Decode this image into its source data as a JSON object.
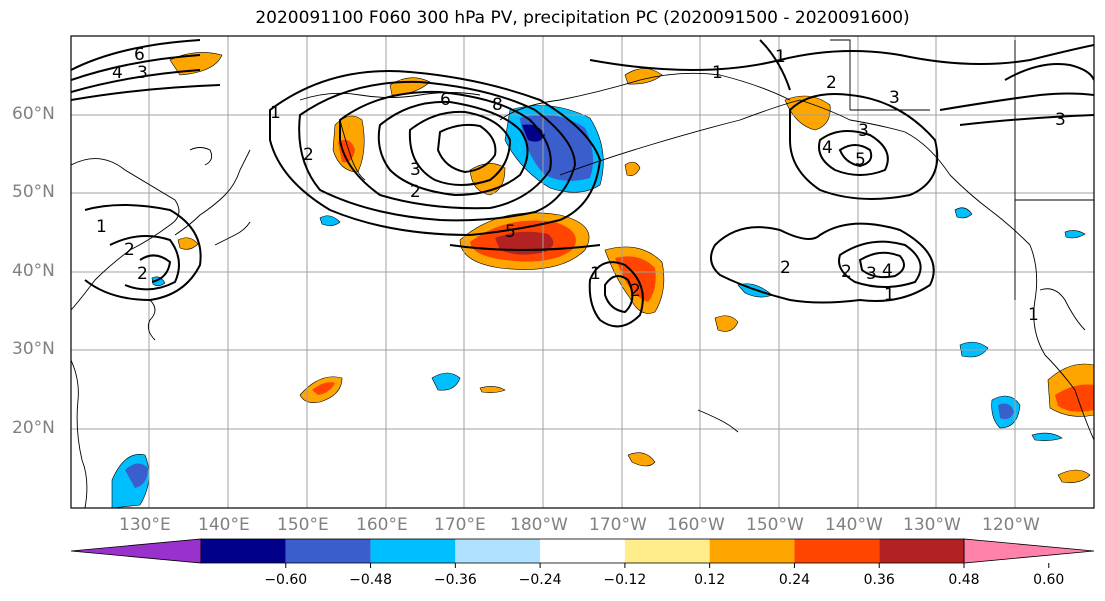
{
  "title": "2020091100 F060 300 hPa PV, precipitation PC (2020091500 - 2020091600)",
  "map": {
    "latitude_labels": [
      "60°N",
      "50°N",
      "40°N",
      "30°N",
      "20°N"
    ],
    "longitude_labels": [
      "130°E",
      "140°E",
      "150°E",
      "160°E",
      "170°E",
      "180°W",
      "170°W",
      "160°W",
      "150°W",
      "140°W",
      "130°W",
      "120°W"
    ],
    "contour_labels": [
      "1",
      "2",
      "3",
      "4",
      "5",
      "6",
      "8"
    ],
    "grid": true
  },
  "colorbar": {
    "ticks": [
      "−0.60",
      "−0.48",
      "−0.36",
      "−0.24",
      "−0.12",
      "0.12",
      "0.24",
      "0.36",
      "0.48",
      "0.60"
    ],
    "colors": [
      "#9932cc",
      "#00008b",
      "#3a5fcd",
      "#00bfff",
      "#b0e2ff",
      "#ffffff",
      "#ffec8b",
      "#ffa500",
      "#ff4500",
      "#b22222",
      "#ff82ab"
    ]
  }
}
